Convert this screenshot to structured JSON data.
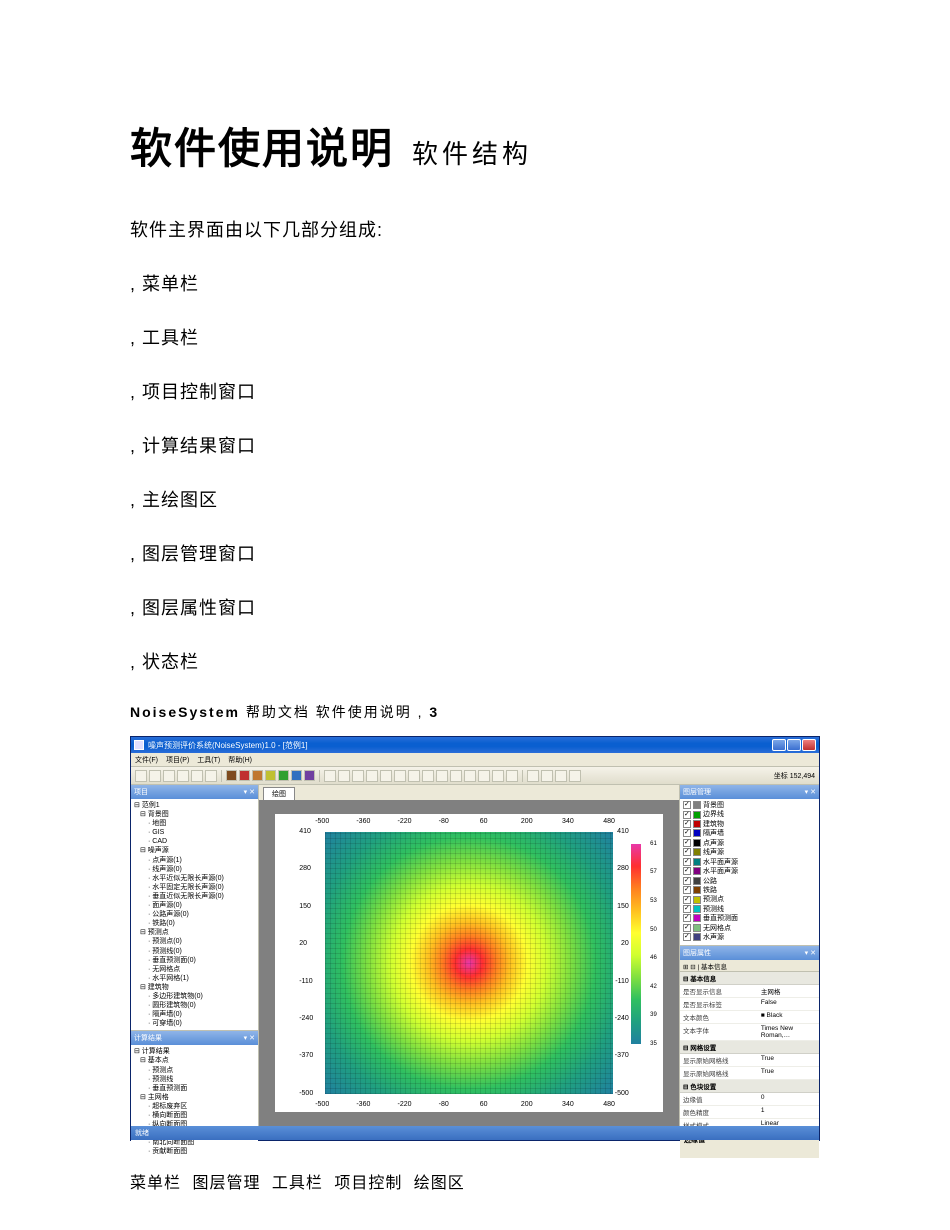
{
  "doc": {
    "main_title": "软件使用说明",
    "sub_title": "软件结构",
    "intro": "软件主界面由以下几部分组成:",
    "list": [
      ", 菜单栏",
      ", 工具栏",
      ", 项目控制窗口",
      ", 计算结果窗口",
      ", 主绘图区",
      ", 图层管理窗口",
      ", 图层属性窗口",
      ", 状态栏"
    ],
    "footer_a": "NoiseSystem",
    "footer_b": " 帮助文档 软件使用说明 , ",
    "footer_c": "3",
    "caption": "菜单栏 图层管理 工具栏 项目控制 绘图区"
  },
  "app": {
    "title": "噪声预测评价系统(NoiseSystem)1.0 - [范例1]",
    "menus": [
      "文件(F)",
      "项目(P)",
      "工具(T)",
      "帮助(H)"
    ],
    "toolbar_colors": [
      "#7e4b1e",
      "#c03030",
      "#c07830",
      "#c0c030",
      "#30a030",
      "#3070c0",
      "#7040a0"
    ],
    "coord_label": "坐标",
    "coord_value": "152,494",
    "proj_head": "项目",
    "result_head": "计算结果",
    "layer_head": "图层管理",
    "prop_head": "图层属性",
    "canvas_tab": "绘图",
    "prop_toolbar": "基本信息",
    "status": "就绪",
    "tree": [
      {
        "l": 0,
        "t": "范例1"
      },
      {
        "l": 1,
        "t": "背景图"
      },
      {
        "l": 2,
        "t": "地图"
      },
      {
        "l": 2,
        "t": "GIS"
      },
      {
        "l": 2,
        "t": "CAD"
      },
      {
        "l": 1,
        "t": "噪声源"
      },
      {
        "l": 2,
        "t": "点声源(1)"
      },
      {
        "l": 2,
        "t": "线声源(0)"
      },
      {
        "l": 2,
        "t": "水平近似无限长声源(0)"
      },
      {
        "l": 2,
        "t": "水平固定无限长声源(0)"
      },
      {
        "l": 2,
        "t": "垂直近似无限长声源(0)"
      },
      {
        "l": 2,
        "t": "面声源(0)"
      },
      {
        "l": 2,
        "t": "公路声源(0)"
      },
      {
        "l": 2,
        "t": "铁路(0)"
      },
      {
        "l": 1,
        "t": "预测点"
      },
      {
        "l": 2,
        "t": "预测点(0)"
      },
      {
        "l": 2,
        "t": "预测线(0)"
      },
      {
        "l": 2,
        "t": "垂直预测面(0)"
      },
      {
        "l": 2,
        "t": "无网格点"
      },
      {
        "l": 2,
        "t": "水平网格(1)"
      },
      {
        "l": 1,
        "t": "建筑物"
      },
      {
        "l": 2,
        "t": "多边形建筑物(0)"
      },
      {
        "l": 2,
        "t": "圆形建筑物(0)"
      },
      {
        "l": 2,
        "t": "隔声墙(0)"
      },
      {
        "l": 2,
        "t": "可穿墙(0)"
      }
    ],
    "result_tree": [
      {
        "l": 0,
        "t": "计算结果"
      },
      {
        "l": 1,
        "t": "基本点"
      },
      {
        "l": 2,
        "t": "预测点"
      },
      {
        "l": 2,
        "t": "预测线"
      },
      {
        "l": 2,
        "t": "垂直预测面"
      },
      {
        "l": 1,
        "t": "主网格"
      },
      {
        "l": 2,
        "t": "超标废弃区"
      },
      {
        "l": 2,
        "t": "横向断面图"
      },
      {
        "l": 2,
        "t": "纵向断面图"
      },
      {
        "l": 2,
        "t": "东西向断面图"
      },
      {
        "l": 2,
        "t": "南北向断面图"
      },
      {
        "l": 2,
        "t": "贡献断面图"
      }
    ],
    "layers": [
      {
        "c": true,
        "sw": "#808080",
        "t": "背景图"
      },
      {
        "c": true,
        "sw": "#00a000",
        "t": "边界线"
      },
      {
        "c": true,
        "sw": "#c00000",
        "t": "建筑物"
      },
      {
        "c": true,
        "sw": "#0000c0",
        "t": "隔声墙"
      },
      {
        "c": true,
        "sw": "#000000",
        "t": "点声源"
      },
      {
        "c": true,
        "sw": "#808000",
        "t": "线声源"
      },
      {
        "c": true,
        "sw": "#008080",
        "t": "水平面声源"
      },
      {
        "c": true,
        "sw": "#800080",
        "t": "水平面声源"
      },
      {
        "c": true,
        "sw": "#404040",
        "t": "公路"
      },
      {
        "c": true,
        "sw": "#804000",
        "t": "铁路"
      },
      {
        "c": true,
        "sw": "#c0c000",
        "t": "预测点"
      },
      {
        "c": true,
        "sw": "#00c0c0",
        "t": "预测线"
      },
      {
        "c": true,
        "sw": "#c000c0",
        "t": "垂直预测面"
      },
      {
        "c": true,
        "sw": "#80c080",
        "t": "无网格点"
      },
      {
        "c": true,
        "sw": "#404080",
        "t": "水声源"
      }
    ],
    "prop_cats": [
      {
        "name": "基本信息",
        "rows": [
          {
            "k": "是否显示信息",
            "v": "主网格"
          },
          {
            "k": "是否显示标签",
            "v": "False"
          },
          {
            "k": "文本颜色",
            "v": "■ Black"
          },
          {
            "k": "文本字体",
            "v": "Times New Roman,…"
          }
        ]
      },
      {
        "name": "网格设置",
        "rows": [
          {
            "k": "显示原始网格线",
            "v": "True"
          },
          {
            "k": "显示原始网格线",
            "v": "True"
          }
        ]
      },
      {
        "name": "色块设置",
        "rows": [
          {
            "k": "边缘值",
            "v": "0"
          },
          {
            "k": "颜色精度",
            "v": "1"
          },
          {
            "k": "样式模式",
            "v": "Linear"
          }
        ]
      }
    ],
    "prop_help": "边缘值",
    "x_ticks": [
      -500,
      -360,
      -220,
      -80,
      60,
      200,
      340,
      480
    ],
    "y_ticks": [
      410,
      280,
      150,
      20,
      -110,
      -240,
      -370,
      -500
    ],
    "cb_ticks": [
      61,
      57,
      53,
      50,
      46,
      42,
      39,
      35
    ]
  }
}
